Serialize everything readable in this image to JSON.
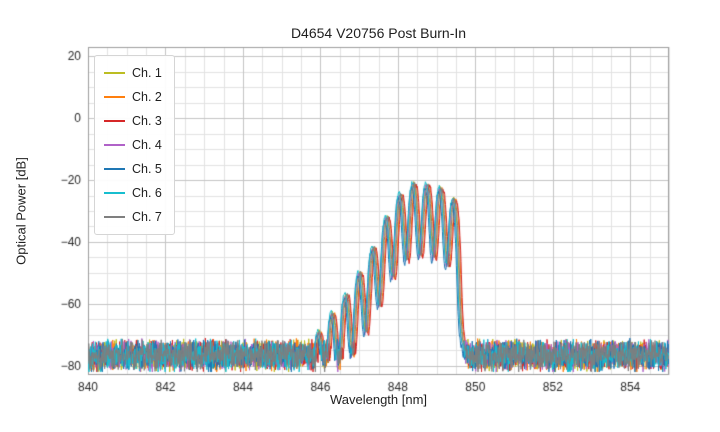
{
  "chart_data": {
    "type": "line",
    "title": "D4654 V20756 Post Burn-In",
    "xlabel": "Wavelength [nm]",
    "ylabel": "Optical Power [dB]",
    "xlim": [
      840,
      855
    ],
    "ylim": [
      -83,
      23
    ],
    "x_ticks": [
      840,
      842,
      844,
      846,
      848,
      850,
      852,
      854
    ],
    "x_tick_labels": [
      "840",
      "842",
      "844",
      "846",
      "848",
      "850",
      "852",
      "854"
    ],
    "y_ticks": [
      20,
      0,
      -20,
      -40,
      -60,
      -80
    ],
    "y_tick_labels": [
      "20",
      "0",
      "−20",
      "−40",
      "−60",
      "−80"
    ],
    "x_minor_step": 0.5,
    "y_minor_step": 5,
    "grid": true,
    "legend_position": "upper-left",
    "x_step": 0.01,
    "series": [
      {
        "name": "Ch. 1",
        "color": "#bcbd22",
        "x_offset": 0.0,
        "y_offset": 0.0,
        "seed": 11
      },
      {
        "name": "Ch. 2",
        "color": "#ff7f0e",
        "x_offset": 0.05,
        "y_offset": -0.5,
        "seed": 22
      },
      {
        "name": "Ch. 3",
        "color": "#d62728",
        "x_offset": 0.07,
        "y_offset": -0.8,
        "seed": 33
      },
      {
        "name": "Ch. 4",
        "color": "#b062c8",
        "x_offset": -0.02,
        "y_offset": -0.6,
        "seed": 44
      },
      {
        "name": "Ch. 5",
        "color": "#1f77b4",
        "x_offset": -0.05,
        "y_offset": -1.5,
        "seed": 55
      },
      {
        "name": "Ch. 6",
        "color": "#17becf",
        "x_offset": -0.03,
        "y_offset": 0.3,
        "seed": 66
      },
      {
        "name": "Ch. 7",
        "color": "#7f7f7f",
        "x_offset": 0.02,
        "y_offset": -0.2,
        "seed": 77
      }
    ],
    "envelope_points": [
      [
        845.2,
        -83
      ],
      [
        845.6,
        -76
      ],
      [
        845.95,
        -69
      ],
      [
        846.3,
        -63
      ],
      [
        846.65,
        -57
      ],
      [
        847.0,
        -50
      ],
      [
        847.35,
        -42
      ],
      [
        847.7,
        -32
      ],
      [
        848.05,
        -24.5
      ],
      [
        848.4,
        -21
      ],
      [
        848.75,
        -21.3
      ],
      [
        849.1,
        -22.5
      ],
      [
        849.45,
        -26
      ],
      [
        849.55,
        -30
      ],
      [
        849.65,
        -48
      ],
      [
        849.75,
        -75
      ],
      [
        849.85,
        -100
      ]
    ],
    "ripple": {
      "period": 0.35,
      "phase_center": 848.4,
      "notch_depth": 23,
      "notch_exponent": 1.35
    },
    "noise_floor": {
      "mean": -76.5,
      "spread": 5.5,
      "min": -82,
      "max": -70.5,
      "spike_prob": 0.04,
      "spike_depth": 5
    },
    "noise_description": "broadband noise floor between about -71 and -82 dB across full span; laser spectrum with Fabry-Perot mode ripples from ~845.9 nm rising to ~-21 dB peaks near 848.4-849.1 nm, sharp cutoff near 849.6 nm"
  }
}
